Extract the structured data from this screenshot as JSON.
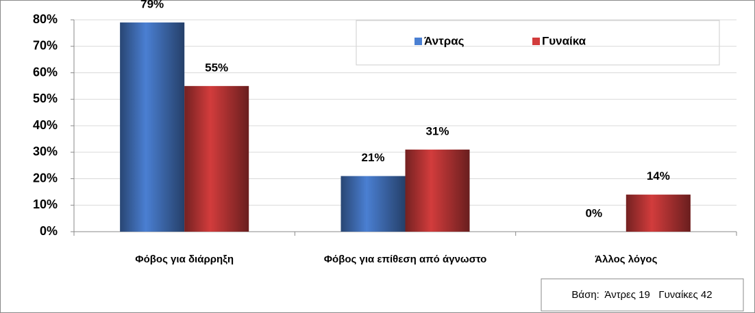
{
  "chart_data": {
    "type": "bar",
    "categories": [
      "Φόβος για διάρρηξη",
      "Φόβος για επίθεση από άγνωστο",
      "Άλλος λόγος"
    ],
    "series": [
      {
        "name": "Άντρας",
        "color": "#4a7fd2",
        "values": [
          79,
          21,
          0
        ],
        "value_labels": [
          "79%",
          "21%",
          "0%"
        ]
      },
      {
        "name": "Γυναίκα",
        "color": "#d23c3c",
        "values": [
          55,
          31,
          14
        ],
        "value_labels": [
          "55%",
          "31%",
          "14%"
        ]
      }
    ],
    "ylim": [
      0,
      80
    ],
    "yticks": [
      {
        "value": 0,
        "label": "0%"
      },
      {
        "value": 10,
        "label": "10%"
      },
      {
        "value": 20,
        "label": "20%"
      },
      {
        "value": 30,
        "label": "30%"
      },
      {
        "value": 40,
        "label": "40%"
      },
      {
        "value": 50,
        "label": "50%"
      },
      {
        "value": 60,
        "label": "60%"
      },
      {
        "value": 70,
        "label": "70%"
      },
      {
        "value": 80,
        "label": "80%"
      }
    ],
    "grid": true,
    "legend": "top-right",
    "note": "Βάση:  Άντρες 19   Γυναίκες 42"
  }
}
